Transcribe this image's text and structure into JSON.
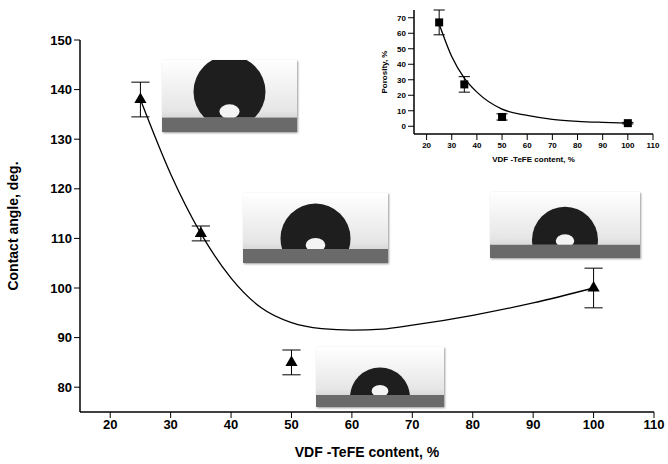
{
  "chart_data": [
    {
      "type": "scatter",
      "x_label": "VDF -TeFE content, %",
      "y_label": "Contact angle, deg.",
      "xlim": [
        15,
        110
      ],
      "xticks": [
        20,
        30,
        40,
        50,
        60,
        70,
        80,
        90,
        100,
        110
      ],
      "ylim": [
        75,
        150
      ],
      "yticks": [
        80,
        90,
        100,
        110,
        120,
        130,
        140,
        150
      ],
      "grid": false,
      "series": [
        {
          "type": "scatter",
          "marker": "triangle",
          "color": "#000000",
          "x": [
            25,
            35,
            50,
            100
          ],
          "values": [
            138,
            111,
            85,
            100
          ],
          "errors": [
            3.5,
            1.5,
            2.5,
            4
          ]
        },
        {
          "type": "line",
          "color": "#000000",
          "line_style": "solid",
          "x": [
            25,
            30,
            35,
            40,
            45,
            50,
            55,
            60,
            65,
            70,
            80,
            90,
            100
          ],
          "values": [
            138,
            123,
            111,
            102,
            96,
            93,
            91.8,
            91.5,
            91.7,
            92.5,
            94.5,
            97,
            100
          ]
        }
      ]
    },
    {
      "type": "scatter",
      "x_label": "VDF -TeFE content, %",
      "y_label": "Porosity, %",
      "xlim": [
        15,
        110
      ],
      "xticks": [
        20,
        30,
        40,
        50,
        60,
        70,
        80,
        90,
        100,
        110
      ],
      "ylim": [
        -5,
        75
      ],
      "yticks": [
        0,
        10,
        20,
        30,
        40,
        50,
        60,
        70
      ],
      "grid": false,
      "series": [
        {
          "type": "scatter",
          "marker": "square",
          "color": "#000000",
          "x": [
            25,
            35,
            50,
            100
          ],
          "values": [
            67,
            27,
            6,
            2
          ],
          "errors": [
            8,
            5,
            2,
            0.5
          ]
        },
        {
          "type": "line",
          "color": "#000000",
          "line_style": "solid",
          "x": [
            25,
            30,
            35,
            40,
            50,
            60,
            70,
            80,
            90,
            100
          ],
          "values": [
            66,
            45,
            31,
            22,
            11,
            7,
            4.5,
            3.2,
            2.5,
            2
          ]
        }
      ]
    }
  ]
}
